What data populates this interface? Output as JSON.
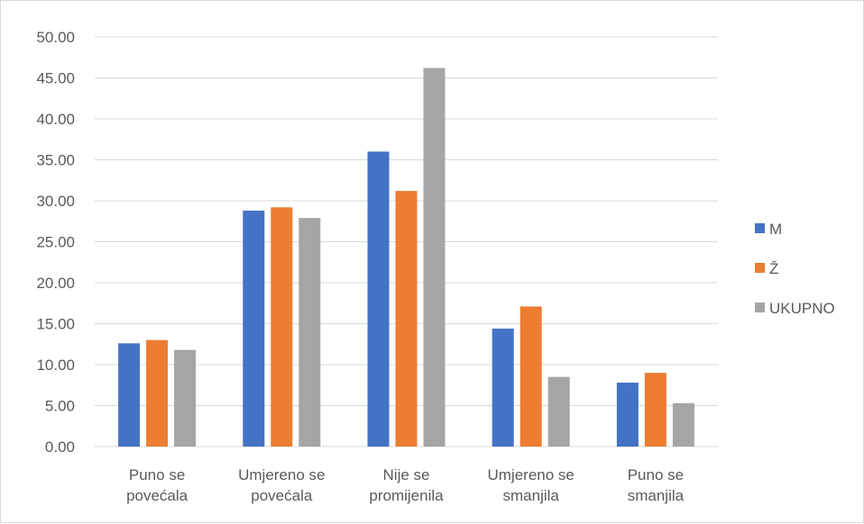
{
  "chart_data": {
    "type": "bar",
    "categories": [
      [
        "Puno se",
        "povećala"
      ],
      [
        "Umjereno se",
        "povećala"
      ],
      [
        "Nije se",
        "promijenila"
      ],
      [
        "Umjereno se",
        "smanjila"
      ],
      [
        "Puno se",
        "smanjila"
      ]
    ],
    "series": [
      {
        "name": "M",
        "color": "#4472C4",
        "values": [
          12.6,
          28.8,
          36.0,
          14.4,
          7.8
        ]
      },
      {
        "name": "Ž",
        "color": "#ED7D31",
        "values": [
          13.0,
          29.2,
          31.2,
          17.1,
          9.0
        ]
      },
      {
        "name": "UKUPNO",
        "color": "#A5A5A5",
        "values": [
          11.8,
          27.9,
          46.2,
          8.5,
          5.3
        ]
      }
    ],
    "ylim": [
      0,
      50
    ],
    "yticks": [
      "0.00",
      "5.00",
      "10.00",
      "15.00",
      "20.00",
      "25.00",
      "30.00",
      "35.00",
      "40.00",
      "45.00",
      "50.00"
    ],
    "grid": true,
    "legend_position": "right",
    "title": "",
    "xlabel": "",
    "ylabel": ""
  }
}
